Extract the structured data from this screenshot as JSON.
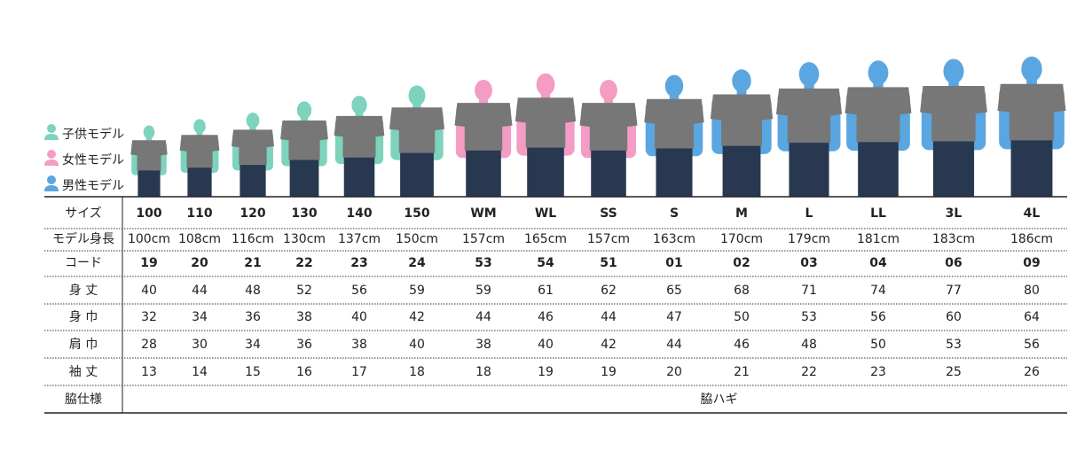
{
  "legend": [
    {
      "label": "子供モデル",
      "color": "#7dd3bd",
      "text_color": "#22a596"
    },
    {
      "label": "女性モデル",
      "color": "#f39cc4",
      "text_color": "#e0559a"
    },
    {
      "label": "男性モデル",
      "color": "#5aa6e0",
      "text_color": "#2a86c6"
    }
  ],
  "table": {
    "row_labels": {
      "size": "サイズ",
      "height": "モデル身長",
      "code": "コード",
      "length": "身 丈",
      "width": "身 巾",
      "shoulder": "肩 巾",
      "sleeve": "袖 丈",
      "side": "脇仕様"
    },
    "columns": [
      {
        "size": "100",
        "height": "100cm",
        "code": "19",
        "group": 0,
        "length": 40,
        "width": 32,
        "shoulder": 28,
        "sleeve": 13
      },
      {
        "size": "110",
        "height": "108cm",
        "code": "20",
        "group": 0,
        "length": 44,
        "width": 34,
        "shoulder": 30,
        "sleeve": 14
      },
      {
        "size": "120",
        "height": "116cm",
        "code": "21",
        "group": 0,
        "length": 48,
        "width": 36,
        "shoulder": 34,
        "sleeve": 15
      },
      {
        "size": "130",
        "height": "130cm",
        "code": "22",
        "group": 0,
        "length": 52,
        "width": 38,
        "shoulder": 36,
        "sleeve": 16
      },
      {
        "size": "140",
        "height": "137cm",
        "code": "23",
        "group": 0,
        "length": 56,
        "width": 40,
        "shoulder": 38,
        "sleeve": 17
      },
      {
        "size": "150",
        "height": "150cm",
        "code": "24",
        "group": 0,
        "length": 59,
        "width": 42,
        "shoulder": 40,
        "sleeve": 18
      },
      {
        "size": "WM",
        "height": "157cm",
        "code": "53",
        "group": 1,
        "length": 59,
        "width": 44,
        "shoulder": 38,
        "sleeve": 18
      },
      {
        "size": "WL",
        "height": "165cm",
        "code": "54",
        "group": 1,
        "length": 61,
        "width": 46,
        "shoulder": 40,
        "sleeve": 19
      },
      {
        "size": "SS",
        "height": "157cm",
        "code": "51",
        "group": 1,
        "length": 62,
        "width": 44,
        "shoulder": 42,
        "sleeve": 19
      },
      {
        "size": "S",
        "height": "163cm",
        "code": "01",
        "group": 2,
        "length": 65,
        "width": 47,
        "shoulder": 44,
        "sleeve": 20
      },
      {
        "size": "M",
        "height": "170cm",
        "code": "02",
        "group": 2,
        "length": 68,
        "width": 50,
        "shoulder": 46,
        "sleeve": 21
      },
      {
        "size": "L",
        "height": "179cm",
        "code": "03",
        "group": 2,
        "length": 71,
        "width": 53,
        "shoulder": 48,
        "sleeve": 22
      },
      {
        "size": "LL",
        "height": "181cm",
        "code": "04",
        "group": 2,
        "length": 74,
        "width": 56,
        "shoulder": 50,
        "sleeve": 23
      },
      {
        "size": "3L",
        "height": "183cm",
        "code": "06",
        "group": 2,
        "length": 77,
        "width": 60,
        "shoulder": 53,
        "sleeve": 25
      },
      {
        "size": "4L",
        "height": "186cm",
        "code": "09",
        "group": 2,
        "length": 80,
        "width": 64,
        "shoulder": 56,
        "sleeve": 26
      }
    ],
    "side_value": "脇ハギ"
  }
}
